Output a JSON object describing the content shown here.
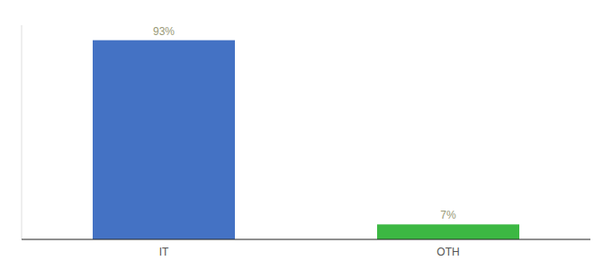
{
  "chart_data": {
    "type": "bar",
    "categories": [
      "IT",
      "OTH"
    ],
    "values": [
      93,
      7
    ],
    "value_labels": [
      "93%",
      "7%"
    ],
    "colors": [
      "#4472c4",
      "#3cb843"
    ],
    "ylim": [
      0,
      100
    ],
    "data_labels": true,
    "tick_labels": "x"
  }
}
